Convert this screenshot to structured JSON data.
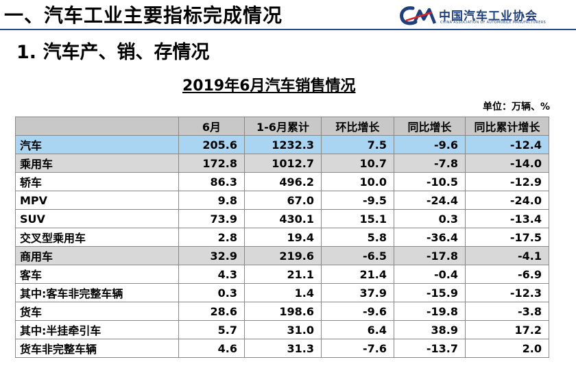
{
  "header": {
    "title": "一、汽车工业主要指标完成情况",
    "logo_text": "中国汽车工业协会",
    "logo_subtext": "CHINA ASSOCIATION OF AUTOMOBILE MANUFACTURERS",
    "brand_color": "#1f3f7a"
  },
  "section_title": "1. 汽车产、销、存情况",
  "table": {
    "title": "2019年6月汽车销售情况",
    "unit": "单位：万辆、%",
    "columns": [
      "",
      "6月",
      "1-6月累计",
      "环比增长",
      "同比增长",
      "同比累计增长"
    ],
    "rows": [
      {
        "name": "汽车",
        "level": 0,
        "style": "total",
        "values": [
          "205.6",
          "1232.3",
          "7.5",
          "-9.6",
          "-12.4"
        ]
      },
      {
        "name": "乘用车",
        "level": 1,
        "style": "sub",
        "values": [
          "172.8",
          "1012.7",
          "10.7",
          "-7.8",
          "-14.0"
        ]
      },
      {
        "name": "轿车",
        "level": 2,
        "style": "row",
        "values": [
          "86.3",
          "496.2",
          "10.0",
          "-10.5",
          "-12.9"
        ]
      },
      {
        "name": "MPV",
        "level": 2,
        "style": "row",
        "values": [
          "9.8",
          "67.0",
          "-9.5",
          "-24.4",
          "-24.0"
        ]
      },
      {
        "name": "SUV",
        "level": 2,
        "style": "row",
        "values": [
          "73.9",
          "430.1",
          "15.1",
          "0.3",
          "-13.4"
        ]
      },
      {
        "name": "交叉型乘用车",
        "level": 2,
        "style": "row",
        "values": [
          "2.8",
          "19.4",
          "5.8",
          "-36.4",
          "-17.5"
        ]
      },
      {
        "name": "商用车",
        "level": 1,
        "style": "sub",
        "values": [
          "32.9",
          "219.6",
          "-6.5",
          "-17.8",
          "-4.1"
        ]
      },
      {
        "name": "客车",
        "level": 2,
        "style": "row",
        "values": [
          "4.3",
          "21.1",
          "21.4",
          "-0.4",
          "-6.9"
        ]
      },
      {
        "name": "其中:客车非完整车辆",
        "level": 3,
        "style": "row",
        "values": [
          "0.3",
          "1.4",
          "37.9",
          "-15.9",
          "-12.3"
        ]
      },
      {
        "name": "货车",
        "level": 2,
        "style": "row",
        "values": [
          "28.6",
          "198.6",
          "-9.6",
          "-19.8",
          "-3.8"
        ]
      },
      {
        "name": "其中:半挂牵引车",
        "level": 3,
        "style": "row",
        "values": [
          "5.7",
          "31.0",
          "6.4",
          "38.9",
          "17.2"
        ]
      },
      {
        "name": "货车非完整车辆",
        "level": 3,
        "style": "row",
        "values": [
          "4.6",
          "31.3",
          "-7.6",
          "-13.7",
          "2.0"
        ]
      }
    ]
  }
}
